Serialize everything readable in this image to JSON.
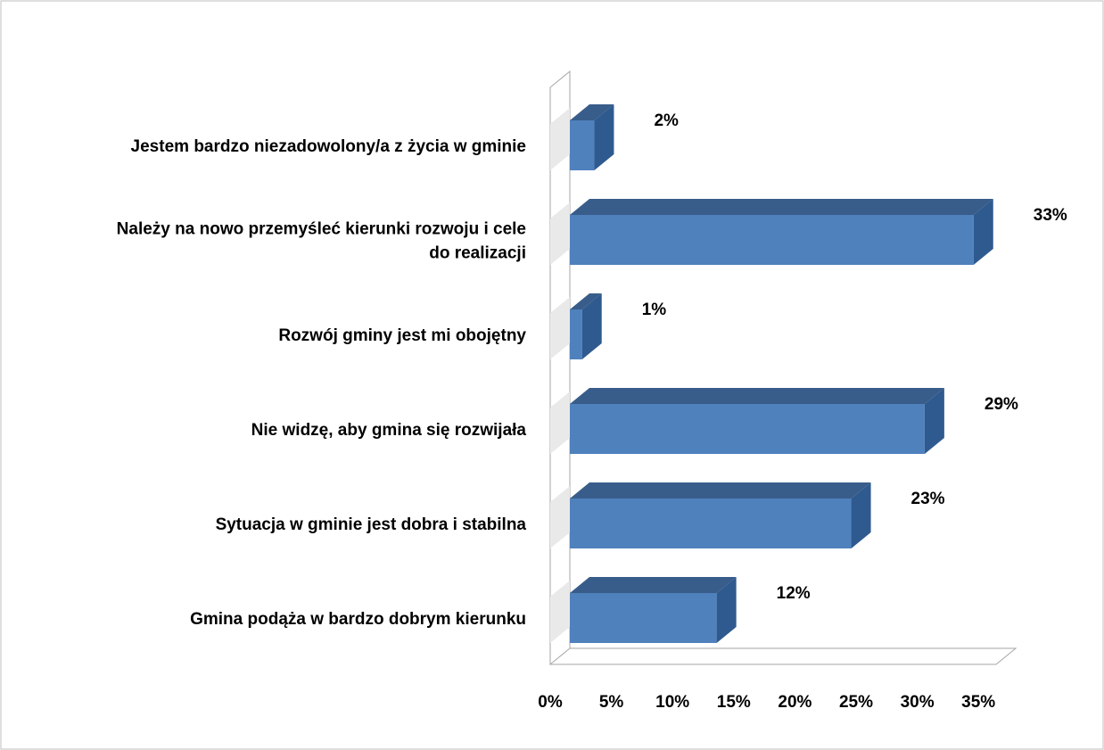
{
  "chart_data": {
    "type": "bar",
    "orientation": "horizontal",
    "style": "3d-clustered-bar",
    "title": "",
    "xlabel": "",
    "ylabel": "",
    "xlim": [
      0,
      35
    ],
    "x_ticks": [
      "0%",
      "5%",
      "10%",
      "15%",
      "20%",
      "25%",
      "30%",
      "35%"
    ],
    "grid": false,
    "legend": "none",
    "bar_color": "#4F81BD",
    "bar_side_color": "#2F5A8F",
    "bar_top_color": "#385D8A",
    "categories": [
      "Jestem bardzo niezadowolony/a z życia w gminie",
      "Należy na nowo przemyśleć kierunki rozwoju i cele do realizacji",
      "Rozwój gminy jest mi obojętny",
      "Nie widzę, aby gmina się rozwijała",
      "Sytuacja w gminie jest dobra i stabilna",
      "Gmina podąża w bardzo dobrym kierunku"
    ],
    "category_lines": [
      [
        "Jestem bardzo niezadowolony/a z życia w gminie"
      ],
      [
        "Należy na nowo przemyśleć kierunki rozwoju i cele",
        "do realizacji"
      ],
      [
        "Rozwój gminy jest mi obojętny"
      ],
      [
        "Nie widzę, aby gmina się rozwijała"
      ],
      [
        "Sytuacja w gminie jest dobra i stabilna"
      ],
      [
        "Gmina podąża w bardzo dobrym kierunku"
      ]
    ],
    "values": [
      2,
      33,
      1,
      29,
      23,
      12
    ],
    "value_labels": [
      "2%",
      "33%",
      "1%",
      "29%",
      "23%",
      "12%"
    ]
  }
}
